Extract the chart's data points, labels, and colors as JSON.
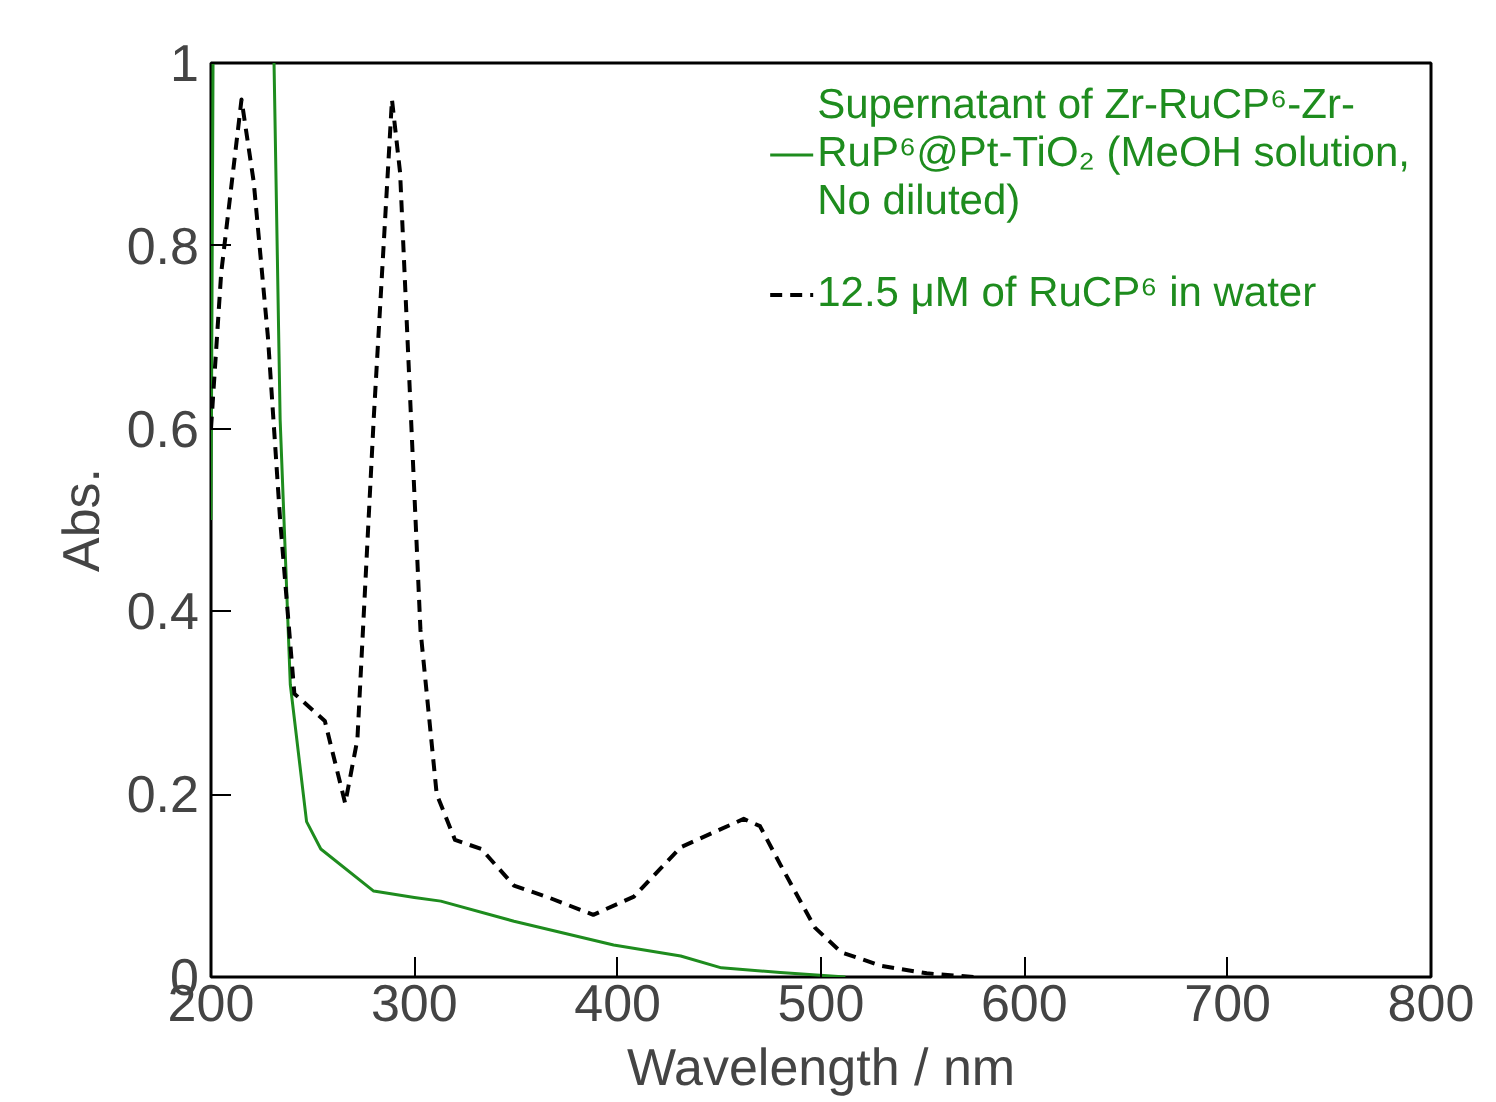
{
  "chart_data": {
    "type": "line",
    "xlabel": "Wavelength / nm",
    "ylabel": "Abs.",
    "xlim": [
      200,
      800
    ],
    "ylim": [
      0,
      1
    ],
    "xticks": [
      200,
      300,
      400,
      500,
      600,
      700,
      800
    ],
    "yticks": [
      0,
      0.2,
      0.4,
      0.6,
      0.8,
      1
    ],
    "grid": false,
    "legend": "top right",
    "series": [
      {
        "name": "Supernatant of Zr-RuCP⁶-Zr-RuP⁶@Pt-TiO₂ (MeOH solution, No diluted)",
        "color": "#1e8c1e",
        "line_style": "solid",
        "x": [
          200,
          201,
          202,
          231,
          234,
          239,
          247,
          254,
          280,
          300,
          313,
          349,
          398,
          431,
          451,
          480,
          512
        ],
        "values": [
          0.5,
          1.0,
          null,
          1.0,
          0.61,
          0.32,
          0.17,
          0.14,
          0.094,
          0.087,
          0.083,
          0.061,
          0.035,
          0.023,
          0.01,
          0.005,
          0
        ]
      },
      {
        "name": "12.5 μM of RuCP⁶ in water",
        "color": "#000000",
        "line_style": "dashed",
        "x": [
          200,
          205,
          215,
          221,
          228,
          234,
          241,
          246,
          256,
          266,
          272,
          280,
          289,
          293,
          303,
          311,
          320,
          333,
          349,
          366,
          388,
          408,
          431,
          462,
          470,
          480,
          497,
          510,
          530,
          552,
          575
        ],
        "values": [
          0.6,
          0.77,
          0.96,
          0.87,
          0.7,
          0.5,
          0.31,
          0.3,
          0.28,
          0.19,
          0.26,
          0.61,
          0.96,
          0.88,
          0.38,
          0.2,
          0.15,
          0.14,
          0.1,
          0.087,
          0.068,
          0.088,
          0.142,
          0.173,
          0.165,
          0.123,
          0.054,
          0.027,
          0.012,
          0.004,
          0
        ]
      }
    ]
  }
}
